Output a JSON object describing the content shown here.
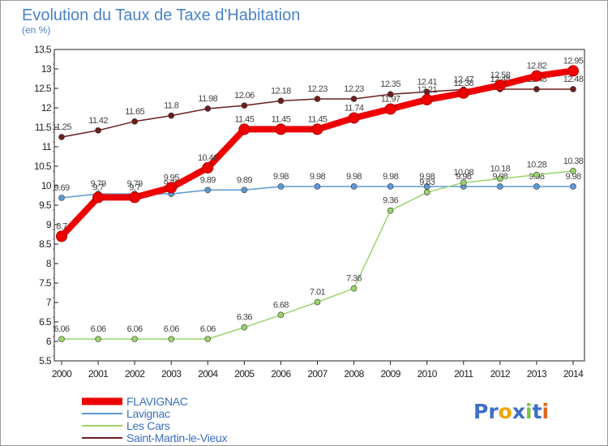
{
  "chart_data": {
    "type": "line",
    "title": "Evolution du Taux de Taxe d'Habitation",
    "ylabel": "(en %)",
    "xlabel": "",
    "ylim": [
      5.5,
      13.5
    ],
    "ystep": 0.5,
    "grid": false,
    "legend_position": "bottom-left",
    "categories": [
      "2000",
      "2001",
      "2002",
      "2003",
      "2004",
      "2005",
      "2006",
      "2007",
      "2008",
      "2009",
      "2010",
      "2011",
      "2012",
      "2013",
      "2014"
    ],
    "y_tick_labels": [
      "5.5",
      "6",
      "6.5",
      "7",
      "7.5",
      "8",
      "8.5",
      "9",
      "9.5",
      "10",
      "10.5",
      "11",
      "11.5",
      "12",
      "12.5",
      "13",
      "13.5"
    ],
    "series": [
      {
        "name": "Saint-Martin-le-Vieux",
        "color": "#6b1e1e",
        "values": [
          11.25,
          11.42,
          11.65,
          11.8,
          11.98,
          12.06,
          12.18,
          12.23,
          12.23,
          12.35,
          12.41,
          12.47,
          12.48,
          12.48,
          12.48
        ],
        "labels": [
          "11.25",
          "11.42",
          "11.65",
          "11.8",
          "11.98",
          "12.06",
          "12.18",
          "12.23",
          "12.23",
          "12.35",
          "12.41",
          "12.47",
          "12.48",
          "12.48",
          "12.48"
        ]
      },
      {
        "name": "Lavignac",
        "color": "#5b9bd5",
        "values": [
          9.69,
          9.79,
          9.79,
          9.79,
          9.89,
          9.89,
          9.98,
          9.98,
          9.98,
          9.98,
          9.98,
          9.98,
          9.98,
          9.98,
          9.98
        ],
        "labels": [
          "9.69",
          "9.79",
          "9.79",
          "9.79",
          "9.89",
          "9.89",
          "9.98",
          "9.98",
          "9.98",
          "9.98",
          "9.98",
          "9.98",
          "9.98",
          "9.98",
          "9.98"
        ]
      },
      {
        "name": "Les Cars",
        "color": "#9ad36b",
        "values": [
          6.06,
          6.06,
          6.06,
          6.06,
          6.06,
          6.36,
          6.68,
          7.01,
          7.36,
          9.36,
          9.83,
          10.08,
          10.18,
          10.28,
          10.38
        ],
        "labels": [
          "6.06",
          "6.06",
          "6.06",
          "6.06",
          "6.06",
          "6.36",
          "6.68",
          "7.01",
          "7.36",
          "9.36",
          "9.83",
          "10.08",
          "10.18",
          "10.28",
          "10.38"
        ]
      },
      {
        "name": "FLAVIGNAC",
        "color": "#ee0000",
        "values": [
          8.7,
          9.7,
          9.7,
          9.95,
          10.46,
          11.45,
          11.45,
          11.45,
          11.74,
          11.97,
          12.21,
          12.38,
          12.58,
          12.82,
          12.95
        ],
        "labels": [
          "8.7",
          "9.7",
          "9.7",
          "9.95",
          "10.46",
          "11.45",
          "11.45",
          "11.45",
          "11.74",
          "11.97",
          "12.21",
          "12.38",
          "12.58",
          "12.82",
          "12.95"
        ]
      }
    ],
    "legend": [
      "FLAVIGNAC",
      "Lavignac",
      "Les Cars",
      "Saint-Martin-le-Vieux"
    ]
  },
  "watermark": {
    "text": "Proxiti"
  }
}
